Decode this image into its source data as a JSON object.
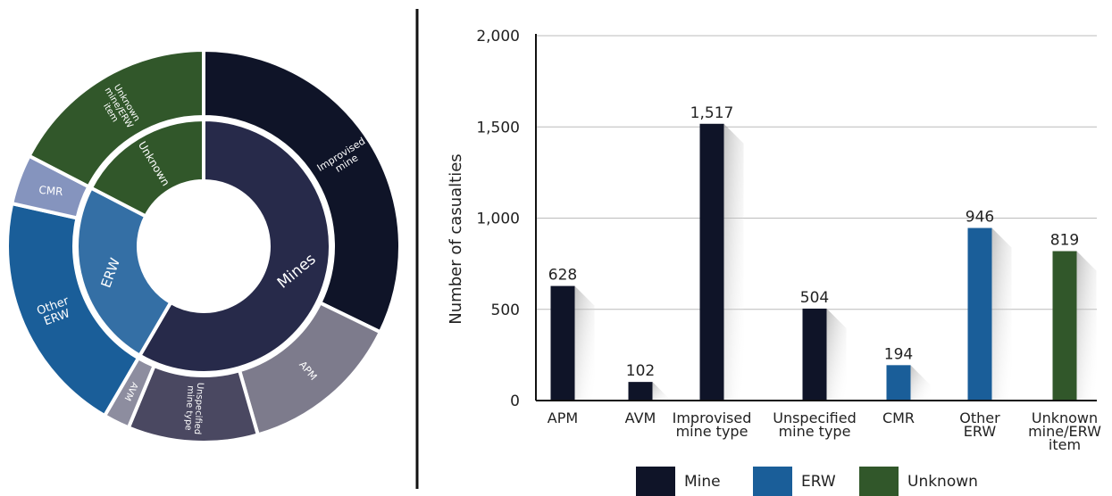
{
  "colors": {
    "mine": "#0f1428",
    "mine_inner": "#272a4a",
    "erw": "#1a5e99",
    "erw_inner": "#346fa5",
    "unknown": "#31572a",
    "apm": "#7d7b8c",
    "unspecified": "#4a4861",
    "avm": "#8d8d9f",
    "cmr": "#8594be",
    "axis": "#111111",
    "grid": "#bbbbbb",
    "label": "#222222"
  },
  "chart_data": [
    {
      "type": "pie",
      "subtype": "sunburst",
      "inner_ring": [
        {
          "label": "Mines",
          "value": 2751,
          "color_key": "mine_inner"
        },
        {
          "label": "ERW",
          "value": 1140,
          "color_key": "erw_inner"
        },
        {
          "label": "Unknown",
          "value": 819,
          "color_key": "unknown"
        }
      ],
      "outer_ring": [
        {
          "label": "Improvised mine",
          "value": 1517,
          "color_key": "mine"
        },
        {
          "label": "APM",
          "value": 628,
          "color_key": "apm"
        },
        {
          "label": "Unspecified mine type",
          "value": 504,
          "color_key": "unspecified"
        },
        {
          "label": "AVM",
          "value": 102,
          "color_key": "avm"
        },
        {
          "label": "Other ERW",
          "value": 946,
          "color_key": "erw"
        },
        {
          "label": "CMR",
          "value": 194,
          "color_key": "cmr"
        },
        {
          "label": "Unknown mine/ERW item",
          "value": 819,
          "color_key": "unknown"
        }
      ]
    },
    {
      "type": "bar",
      "categories": [
        "APM",
        "AVM",
        "Improvised mine type",
        "Unspecified mine type",
        "CMR",
        "Other ERW",
        "Unknown mine/ERW item"
      ],
      "values": [
        628,
        102,
        1517,
        504,
        194,
        946,
        819
      ],
      "value_labels": [
        "628",
        "102",
        "1,517",
        "504",
        "194",
        "946",
        "819"
      ],
      "groups": [
        "Mine",
        "Mine",
        "Mine",
        "Mine",
        "ERW",
        "ERW",
        "Unknown"
      ],
      "ylabel": "Number of casualties",
      "ylim": [
        0,
        2000
      ],
      "yticks": [
        0,
        500,
        1000,
        1500,
        2000
      ],
      "ytick_labels": [
        "0",
        "500",
        "1,000",
        "1,500",
        "2,000"
      ],
      "grid": true,
      "legend": {
        "position": "bottom",
        "items": [
          {
            "label": "Mine",
            "color_key": "mine"
          },
          {
            "label": "ERW",
            "color_key": "erw"
          },
          {
            "label": "Unknown",
            "color_key": "unknown"
          }
        ]
      }
    }
  ]
}
